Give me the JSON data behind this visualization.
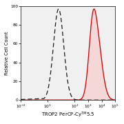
{
  "ylabel": "Relative Cell Count",
  "xlabel_part1": "TROP2 PerCP-Cy",
  "xlabel_superscript": "TM",
  "xlabel_part2": "5.5",
  "xlim": [
    0.01,
    100000.0
  ],
  "ylim": [
    0,
    100
  ],
  "yticks": [
    0,
    20,
    40,
    60,
    80,
    100
  ],
  "leukocyte_peak_x": 0.8,
  "leukocyte_peak_y": 97,
  "leukocyte_sigma": 0.38,
  "mcf7_peak_x": 3.65,
  "mcf7_peak_y": 97,
  "mcf7_sigma": 0.38,
  "mcf7_shoulder_x": 3.3,
  "mcf7_shoulder_y": 82,
  "mcf7_shoulder_sigma": 0.28,
  "dashed_color": "#1a1a1a",
  "fill_color": "#ffb3b3",
  "line_color": "#cc0000",
  "background_color": "#ffffff",
  "plot_bg_color": "#f0f0f0"
}
